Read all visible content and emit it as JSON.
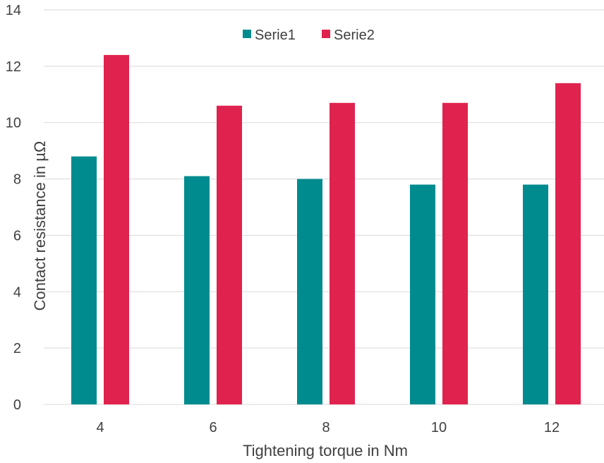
{
  "chart_data": {
    "type": "bar",
    "title": "",
    "xlabel": "Tightening torque in Nm",
    "ylabel": "Contact resistance in µΩ",
    "categories": [
      "4",
      "6",
      "8",
      "10",
      "12"
    ],
    "series": [
      {
        "name": "Serie1",
        "color": "#008B8F",
        "values": [
          8.8,
          8.1,
          8.0,
          7.8,
          7.8
        ]
      },
      {
        "name": "Serie2",
        "color": "#E0234E",
        "values": [
          12.4,
          10.6,
          10.7,
          10.7,
          11.4
        ]
      }
    ],
    "ylim": [
      0,
      14
    ],
    "yticks": [
      "0",
      "2",
      "4",
      "6",
      "8",
      "10",
      "12",
      "14"
    ],
    "grid": true,
    "legend_position": "top-center"
  }
}
